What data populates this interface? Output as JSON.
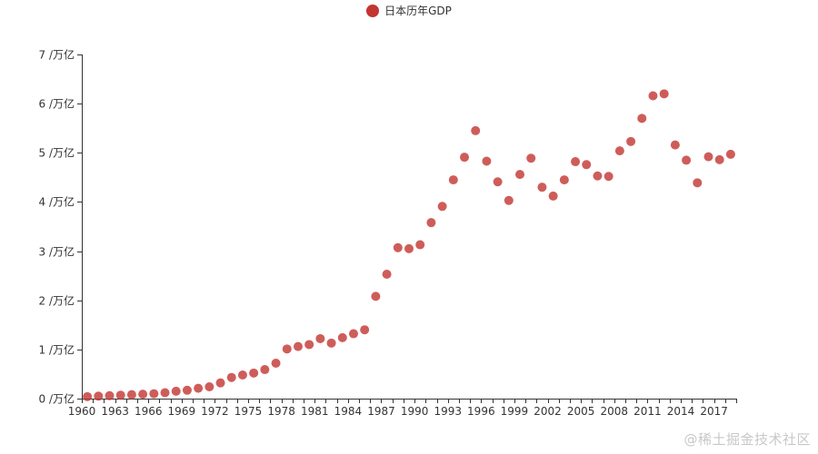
{
  "colors": {
    "point": "#c23531",
    "axis": "#333333",
    "label": "#333333"
  },
  "watermark": "@稀土掘金技术社区",
  "chart_data": {
    "type": "scatter",
    "title": "",
    "xlabel": "",
    "ylabel": "",
    "legend": {
      "entries": [
        "日本历年GDP"
      ],
      "position": "top-center"
    },
    "y_axis": {
      "min": 0,
      "max": 7,
      "step": 1,
      "suffix": " /万亿",
      "tick_labels": [
        "0 /万亿",
        "1 /万亿",
        "2 /万亿",
        "3 /万亿",
        "4 /万亿",
        "5 /万亿",
        "6 /万亿",
        "7 /万亿"
      ]
    },
    "x_axis": {
      "type": "category",
      "tick_labels": [
        "1960",
        "1963",
        "1966",
        "1969",
        "1972",
        "1975",
        "1978",
        "1981",
        "1984",
        "1987",
        "1990",
        "1993",
        "1996",
        "1999",
        "2002",
        "2005",
        "2008",
        "2011",
        "2014",
        "2017"
      ]
    },
    "grid": false,
    "series": [
      {
        "name": "日本历年GDP",
        "x": [
          1960,
          1961,
          1962,
          1963,
          1964,
          1965,
          1966,
          1967,
          1968,
          1969,
          1970,
          1971,
          1972,
          1973,
          1974,
          1975,
          1976,
          1977,
          1978,
          1979,
          1980,
          1981,
          1982,
          1983,
          1984,
          1985,
          1986,
          1987,
          1988,
          1989,
          1990,
          1991,
          1992,
          1993,
          1994,
          1995,
          1996,
          1997,
          1998,
          1999,
          2000,
          2001,
          2002,
          2003,
          2004,
          2005,
          2006,
          2007,
          2008,
          2009,
          2010,
          2011,
          2012,
          2013,
          2014,
          2015,
          2016,
          2017,
          2018
        ],
        "values": [
          0.04,
          0.05,
          0.06,
          0.07,
          0.08,
          0.09,
          0.1,
          0.12,
          0.15,
          0.17,
          0.21,
          0.24,
          0.32,
          0.43,
          0.48,
          0.52,
          0.59,
          0.72,
          1.01,
          1.06,
          1.1,
          1.22,
          1.13,
          1.24,
          1.32,
          1.4,
          2.08,
          2.53,
          3.07,
          3.05,
          3.13,
          3.58,
          3.91,
          4.45,
          4.91,
          5.45,
          4.83,
          4.41,
          4.03,
          4.56,
          4.89,
          4.3,
          4.12,
          4.45,
          4.82,
          4.76,
          4.53,
          4.52,
          5.04,
          5.23,
          5.7,
          6.16,
          6.2,
          5.16,
          4.85,
          4.39,
          4.92,
          4.86,
          4.97
        ]
      }
    ]
  }
}
